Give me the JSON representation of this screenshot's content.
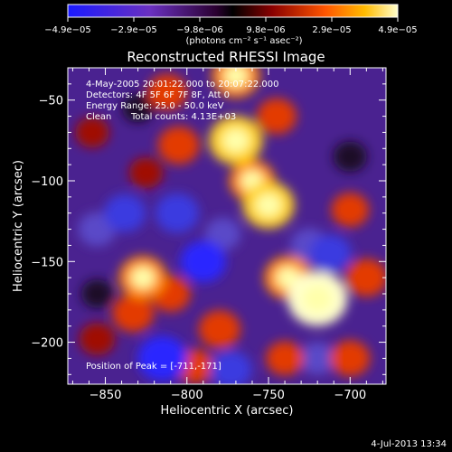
{
  "chart_data": {
    "type": "heatmap",
    "title": "Reconstructed RHESSI Image",
    "xlabel": "Heliocentric X (arcsec)",
    "ylabel": "Heliocentric Y (arcsec)",
    "xlim": [
      -873,
      -678
    ],
    "ylim": [
      -226,
      -30
    ],
    "x_ticks": [
      -850,
      -800,
      -750,
      -700
    ],
    "y_ticks": [
      -50,
      -100,
      -150,
      -200
    ],
    "x_tick_labels": [
      "−850",
      "−800",
      "−750",
      "−700"
    ],
    "y_tick_labels": [
      "−50",
      "−100",
      "−150",
      "−200"
    ],
    "colorbar": {
      "min": -4.9e-05,
      "max": 4.9e-05,
      "tick_labels": [
        "−4.9e−05",
        "−2.9e−05",
        "−9.8e−06",
        "9.8e−06",
        "2.9e−05",
        "4.9e−05"
      ],
      "unit_label": "(photons cm⁻² s⁻¹ asec⁻²)",
      "colors": [
        "#1a1aff",
        "#7a2a9a",
        "#2a0030",
        "#cc2200",
        "#ff9900",
        "#ffff99"
      ]
    },
    "annotations": [
      "4-May-2005 20:01:22.000 to 20:07:22.000",
      "Detectors: 4F 5F 6F 7F 8F, Att 0",
      "Energy Range: 25.0 - 50.0 keV",
      "Clean",
      "Total counts: 4.13E+03",
      "Position of Peak = [-711,-171]"
    ],
    "peak": {
      "x": -711,
      "y": -171
    },
    "blobs": [
      {
        "x": -720,
        "y": -173,
        "v": 1.0
      },
      {
        "x": -738,
        "y": -160,
        "v": 0.7
      },
      {
        "x": -700,
        "y": -118,
        "v": 0.45
      },
      {
        "x": -690,
        "y": -160,
        "v": 0.55
      },
      {
        "x": -750,
        "y": -115,
        "v": 0.8
      },
      {
        "x": -760,
        "y": -100,
        "v": 0.65
      },
      {
        "x": -770,
        "y": -75,
        "v": 0.85
      },
      {
        "x": -770,
        "y": -35,
        "v": 0.7
      },
      {
        "x": -745,
        "y": -60,
        "v": 0.5
      },
      {
        "x": -805,
        "y": -78,
        "v": 0.55
      },
      {
        "x": -812,
        "y": -45,
        "v": 0.5
      },
      {
        "x": -825,
        "y": -95,
        "v": 0.35
      },
      {
        "x": -827,
        "y": -160,
        "v": 0.7
      },
      {
        "x": -833,
        "y": -182,
        "v": 0.55
      },
      {
        "x": -810,
        "y": -170,
        "v": 0.5
      },
      {
        "x": -780,
        "y": -192,
        "v": 0.55
      },
      {
        "x": -795,
        "y": -215,
        "v": 0.45
      },
      {
        "x": -740,
        "y": -210,
        "v": 0.45
      },
      {
        "x": -700,
        "y": -210,
        "v": 0.5
      },
      {
        "x": -858,
        "y": -70,
        "v": 0.35
      },
      {
        "x": -855,
        "y": -198,
        "v": 0.4
      },
      {
        "x": -806,
        "y": -120,
        "v": -0.6
      },
      {
        "x": -790,
        "y": -150,
        "v": -0.65
      },
      {
        "x": -815,
        "y": -210,
        "v": -0.75
      },
      {
        "x": -838,
        "y": -120,
        "v": -0.55
      },
      {
        "x": -855,
        "y": -130,
        "v": -0.45
      },
      {
        "x": -778,
        "y": -133,
        "v": -0.4
      },
      {
        "x": -773,
        "y": -217,
        "v": -0.55
      },
      {
        "x": -725,
        "y": -140,
        "v": -0.45
      },
      {
        "x": -720,
        "y": -210,
        "v": -0.4
      },
      {
        "x": -855,
        "y": -170,
        "v": -0.3
      },
      {
        "x": -700,
        "y": -85,
        "v": -0.35
      },
      {
        "x": -712,
        "y": -145,
        "v": -0.55
      },
      {
        "x": -830,
        "y": -55,
        "v": -0.3
      }
    ]
  },
  "footer": {
    "timestamp": "4-Jul-2013 13:34"
  }
}
